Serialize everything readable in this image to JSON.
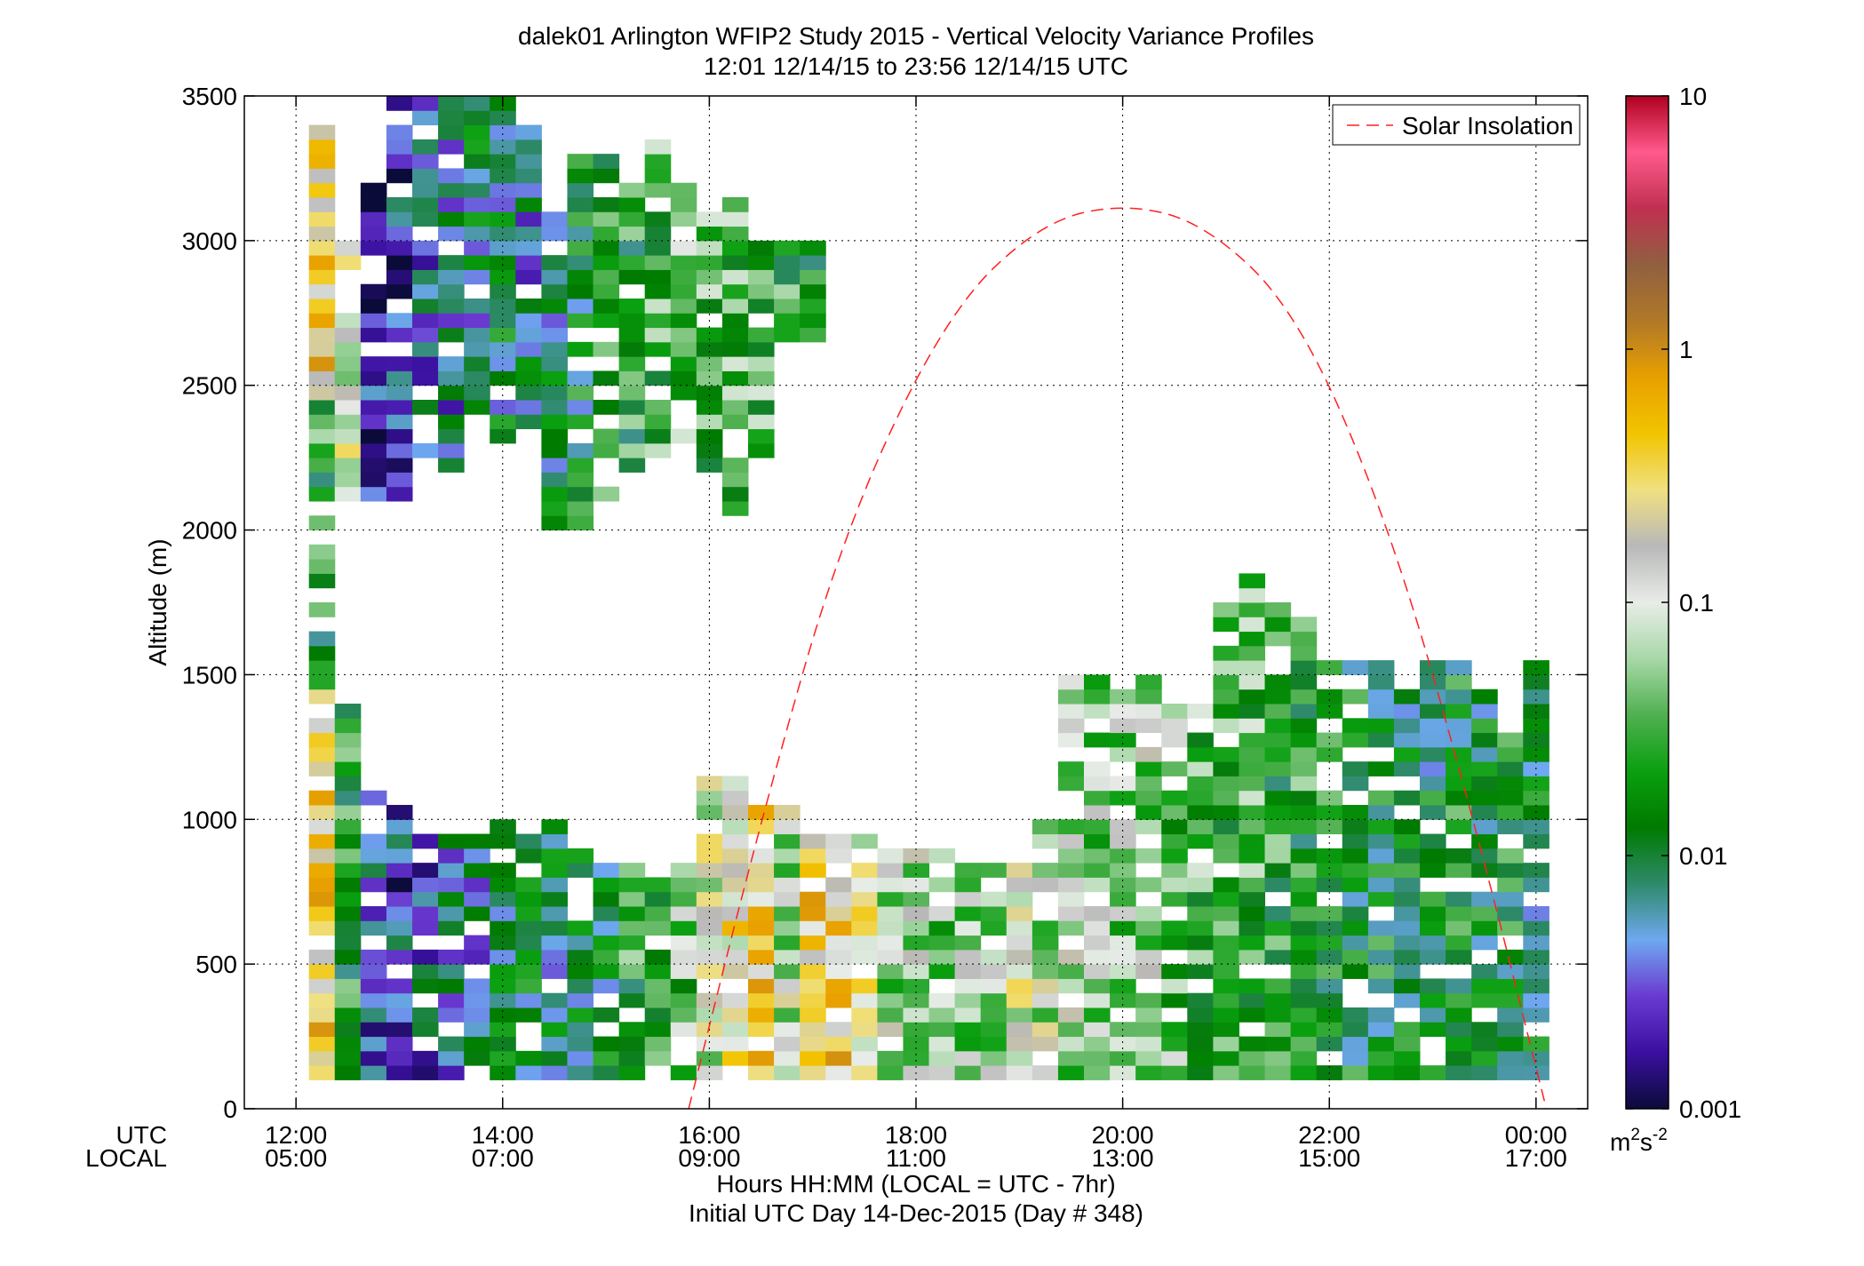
{
  "chart_data": {
    "type": "heatmap",
    "title": "dalek01 Arlington WFIP2 Study 2015 - Vertical Velocity Variance Profiles",
    "subtitle": "12:01 12/14/15 to 23:56 12/14/15  UTC",
    "ylabel": "Altitude (m)",
    "xlabel": "Hours HH:MM  (LOCAL = UTC - 7hr)",
    "xlabel2": "Initial UTC Day 14-Dec-2015 (Day # 348)",
    "x_row_labels": [
      "UTC",
      "LOCAL"
    ],
    "xlim_hours_utc": [
      11.5,
      24.5
    ],
    "ylim": [
      0,
      3500
    ],
    "grid": true,
    "x_ticks": [
      {
        "utc": "12:00",
        "local": "05:00",
        "hour": 12
      },
      {
        "utc": "14:00",
        "local": "07:00",
        "hour": 14
      },
      {
        "utc": "16:00",
        "local": "09:00",
        "hour": 16
      },
      {
        "utc": "18:00",
        "local": "11:00",
        "hour": 18
      },
      {
        "utc": "20:00",
        "local": "13:00",
        "hour": 20
      },
      {
        "utc": "22:00",
        "local": "15:00",
        "hour": 22
      },
      {
        "utc": "00:00",
        "local": "17:00",
        "hour": 24
      }
    ],
    "y_ticks": [
      0,
      500,
      1000,
      1500,
      2000,
      2500,
      3000,
      3500
    ],
    "colorbar": {
      "scale": "log",
      "range": [
        0.001,
        10
      ],
      "ticks": [
        "0.001",
        "0.01",
        "0.1",
        "1",
        "10"
      ],
      "unit_base": "m",
      "unit_exp1": "2",
      "unit_mid": "s",
      "unit_exp2": "-2",
      "stops": [
        "#0b0b3a",
        "#3a10a0",
        "#6a3ad0",
        "#6ea8f0",
        "#2e8a6a",
        "#007a00",
        "#0aa010",
        "#50b050",
        "#a8d8a8",
        "#e8ece8",
        "#b8b8b8",
        "#f0e080",
        "#f2c400",
        "#e8a000",
        "#b07828",
        "#906040",
        "#c03050",
        "#ff5a8c",
        "#b00020"
      ]
    },
    "legend": {
      "position": "top-right",
      "entries": [
        {
          "name": "Solar Insolation",
          "style": "red-dashed"
        }
      ]
    },
    "solar_insolation": {
      "color": "#ff2020",
      "points": [
        [
          15.8,
          0
        ],
        [
          16.5,
          1000
        ],
        [
          17.3,
          2000
        ],
        [
          18.3,
          2750
        ],
        [
          19.2,
          3060
        ],
        [
          20.0,
          3130
        ],
        [
          20.8,
          3060
        ],
        [
          21.7,
          2750
        ],
        [
          22.6,
          2000
        ],
        [
          23.4,
          1000
        ],
        [
          24.1,
          0
        ]
      ]
    },
    "variance_data": {
      "description_units": "m^2 s^-2",
      "time_step_hours": 0.25,
      "height_step_m": 50,
      "profiles": [
        {
          "t": 12.25,
          "segments": [
            [
              100,
              1450,
              0.3
            ],
            [
              1450,
              2450,
              0.02
            ],
            [
              2450,
              3400,
              0.3
            ]
          ]
        },
        {
          "t": 12.5,
          "segments": [
            [
              100,
              1400,
              0.02
            ],
            [
              2000,
              3000,
              0.1
            ]
          ]
        },
        {
          "t": 12.75,
          "segments": [
            [
              100,
              1100,
              0.004
            ],
            [
              2100,
              3200,
              0.002
            ]
          ]
        },
        {
          "t": 13.0,
          "segments": [
            [
              100,
              1050,
              0.003
            ],
            [
              2100,
              3500,
              0.003
            ]
          ]
        },
        {
          "t": 13.25,
          "segments": [
            [
              100,
              950,
              0.004
            ],
            [
              2200,
              3500,
              0.004
            ]
          ]
        },
        {
          "t": 13.5,
          "segments": [
            [
              100,
              950,
              0.006
            ],
            [
              2200,
              3500,
              0.005
            ]
          ]
        },
        {
          "t": 13.75,
          "segments": [
            [
              100,
              950,
              0.005
            ],
            [
              2400,
              3500,
              0.008
            ]
          ]
        },
        {
          "t": 14.0,
          "segments": [
            [
              100,
              1000,
              0.008
            ],
            [
              2300,
              3500,
              0.01
            ]
          ]
        },
        {
          "t": 14.25,
          "segments": [
            [
              100,
              950,
              0.01
            ],
            [
              2300,
              3400,
              0.006
            ]
          ]
        },
        {
          "t": 14.5,
          "segments": [
            [
              100,
              1050,
              0.008
            ],
            [
              2000,
              3100,
              0.01
            ]
          ]
        },
        {
          "t": 14.75,
          "segments": [
            [
              100,
              950,
              0.012
            ],
            [
              2000,
              3300,
              0.012
            ]
          ]
        },
        {
          "t": 15.0,
          "segments": [
            [
              100,
              850,
              0.01
            ],
            [
              2100,
              3300,
              0.02
            ]
          ]
        },
        {
          "t": 15.25,
          "segments": [
            [
              100,
              850,
              0.02
            ],
            [
              2200,
              3200,
              0.02
            ]
          ]
        },
        {
          "t": 15.5,
          "segments": [
            [
              100,
              800,
              0.03
            ],
            [
              2250,
              3350,
              0.03
            ]
          ]
        },
        {
          "t": 15.75,
          "segments": [
            [
              100,
              850,
              0.04
            ],
            [
              2300,
              3200,
              0.04
            ]
          ]
        },
        {
          "t": 16.0,
          "segments": [
            [
              100,
              1150,
              0.1
            ],
            [
              2200,
              3100,
              0.03
            ]
          ]
        },
        {
          "t": 16.25,
          "segments": [
            [
              100,
              1150,
              0.2
            ],
            [
              2050,
              3150,
              0.03
            ]
          ]
        },
        {
          "t": 16.5,
          "segments": [
            [
              100,
              1100,
              0.3
            ],
            [
              2250,
              3000,
              0.03
            ]
          ]
        },
        {
          "t": 16.75,
          "segments": [
            [
              100,
              1050,
              0.08
            ],
            [
              2600,
              3000,
              0.02
            ]
          ]
        },
        {
          "t": 17.0,
          "segments": [
            [
              100,
              950,
              0.3
            ],
            [
              2650,
              3000,
              0.02
            ]
          ]
        },
        {
          "t": 17.25,
          "segments": [
            [
              100,
              950,
              0.3
            ]
          ]
        },
        {
          "t": 17.5,
          "segments": [
            [
              100,
              950,
              0.15
            ]
          ]
        },
        {
          "t": 17.75,
          "segments": [
            [
              100,
              900,
              0.06
            ]
          ]
        },
        {
          "t": 18.0,
          "segments": [
            [
              100,
              900,
              0.08
            ]
          ]
        },
        {
          "t": 18.25,
          "segments": [
            [
              100,
              900,
              0.05
            ]
          ]
        },
        {
          "t": 18.5,
          "segments": [
            [
              100,
              850,
              0.06
            ]
          ]
        },
        {
          "t": 18.75,
          "segments": [
            [
              100,
              850,
              0.06
            ]
          ]
        },
        {
          "t": 19.0,
          "segments": [
            [
              100,
              850,
              0.12
            ]
          ]
        },
        {
          "t": 19.25,
          "segments": [
            [
              100,
              1000,
              0.08
            ]
          ]
        },
        {
          "t": 19.5,
          "segments": [
            [
              100,
              1500,
              0.06
            ]
          ]
        },
        {
          "t": 19.75,
          "segments": [
            [
              100,
              1500,
              0.05
            ]
          ]
        },
        {
          "t": 20.0,
          "segments": [
            [
              100,
              1450,
              0.05
            ]
          ]
        },
        {
          "t": 20.25,
          "segments": [
            [
              100,
              1500,
              0.06
            ]
          ]
        },
        {
          "t": 20.5,
          "segments": [
            [
              100,
              1400,
              0.04
            ]
          ]
        },
        {
          "t": 20.75,
          "segments": [
            [
              100,
              1400,
              0.03
            ]
          ]
        },
        {
          "t": 21.0,
          "segments": [
            [
              100,
              1800,
              0.03
            ]
          ]
        },
        {
          "t": 21.25,
          "segments": [
            [
              100,
              1850,
              0.03
            ]
          ]
        },
        {
          "t": 21.5,
          "segments": [
            [
              100,
              1750,
              0.02
            ]
          ]
        },
        {
          "t": 21.75,
          "segments": [
            [
              100,
              1700,
              0.02
            ]
          ]
        },
        {
          "t": 22.0,
          "segments": [
            [
              100,
              1550,
              0.015
            ]
          ]
        },
        {
          "t": 22.25,
          "segments": [
            [
              100,
              1550,
              0.015
            ]
          ]
        },
        {
          "t": 22.5,
          "segments": [
            [
              100,
              1550,
              0.015
            ]
          ]
        },
        {
          "t": 22.75,
          "segments": [
            [
              100,
              1450,
              0.012
            ]
          ]
        },
        {
          "t": 23.0,
          "segments": [
            [
              100,
              1550,
              0.012
            ]
          ]
        },
        {
          "t": 23.25,
          "segments": [
            [
              100,
              1550,
              0.015
            ]
          ]
        },
        {
          "t": 23.5,
          "segments": [
            [
              100,
              1450,
              0.012
            ]
          ]
        },
        {
          "t": 23.75,
          "segments": [
            [
              100,
              1300,
              0.015
            ]
          ]
        },
        {
          "t": 24.0,
          "segments": [
            [
              100,
              1550,
              0.012
            ]
          ]
        }
      ]
    }
  }
}
